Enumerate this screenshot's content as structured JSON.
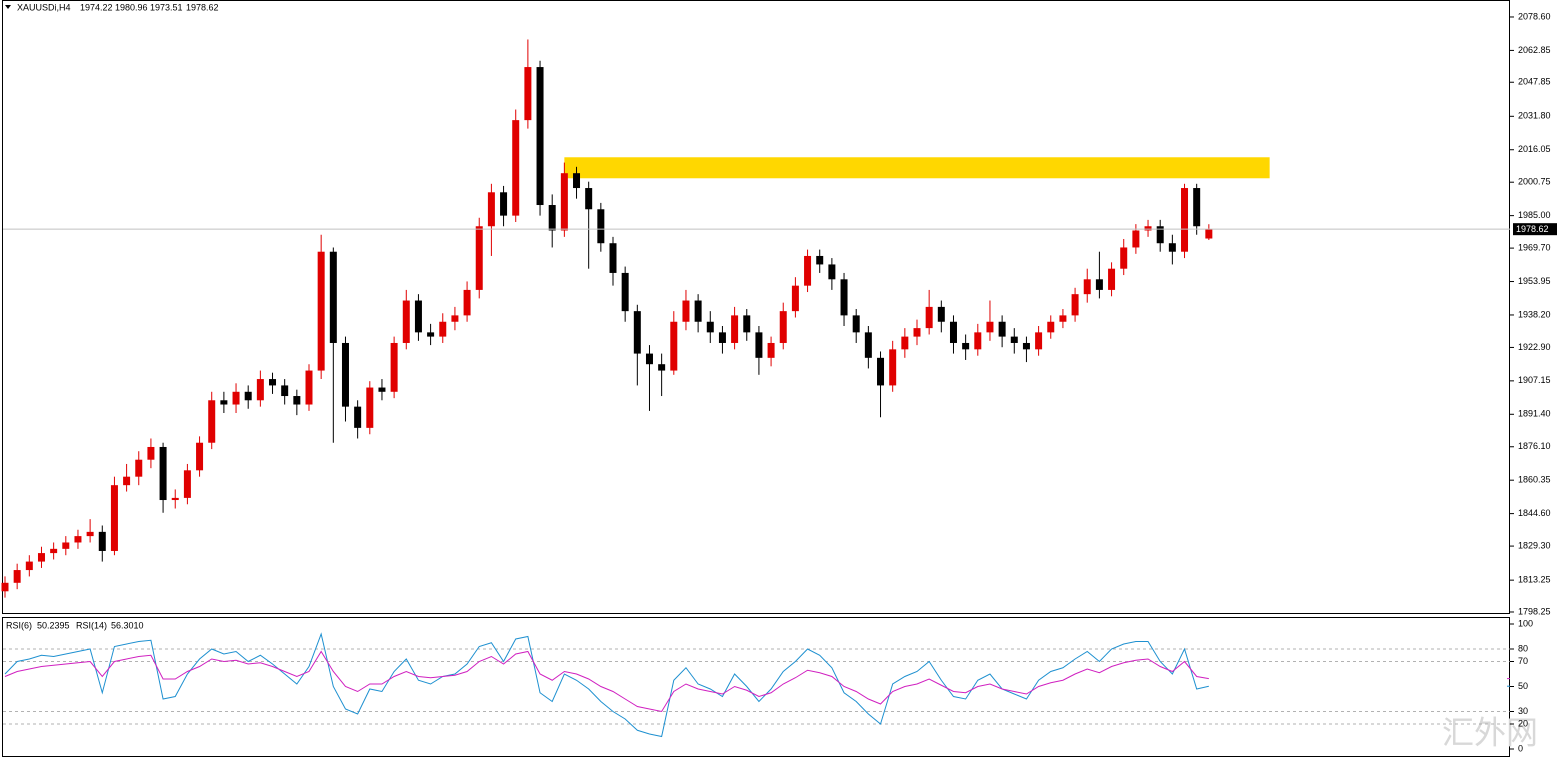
{
  "chart_data": {
    "type": "candlestick",
    "symbol": "XAUUSDi,H4",
    "up_color": "#e00000",
    "down_color": "#000000",
    "ylim": [
      1797.3,
      2086.6
    ],
    "yticks": [
      {
        "value": 2078.6,
        "label": "2078.60"
      },
      {
        "value": 2062.85,
        "label": "2062.85"
      },
      {
        "value": 2047.85,
        "label": "2047.85"
      },
      {
        "value": 2031.8,
        "label": "2031.80"
      },
      {
        "value": 2016.05,
        "label": "2016.05"
      },
      {
        "value": 2000.75,
        "label": "2000.75"
      },
      {
        "value": 1985,
        "label": "1985.00"
      },
      {
        "value": 1969.7,
        "label": "1969.70"
      },
      {
        "value": 1953.95,
        "label": "1953.95"
      },
      {
        "value": 1938.2,
        "label": "1938.20"
      },
      {
        "value": 1922.9,
        "label": "1922.90"
      },
      {
        "value": 1907.15,
        "label": "1907.15"
      },
      {
        "value": 1891.4,
        "label": "1891.40"
      },
      {
        "value": 1876.1,
        "label": "1876.10"
      },
      {
        "value": 1860.35,
        "label": "1860.35"
      },
      {
        "value": 1844.6,
        "label": "1844.60"
      },
      {
        "value": 1829.3,
        "label": "1829.30"
      },
      {
        "value": 1813.25,
        "label": "1813.25"
      },
      {
        "value": 1798.25,
        "label": "1798.25"
      }
    ],
    "open": [
      1808,
      1812,
      1818,
      1822,
      1826,
      1828,
      1831,
      1834,
      1836,
      1827,
      1858,
      1862,
      1870,
      1876,
      1851,
      1852,
      1865,
      1878,
      1898,
      1896,
      1902,
      1898,
      1908,
      1905,
      1900,
      1896,
      1912,
      1968,
      1925,
      1895,
      1885,
      1904,
      1902,
      1925,
      1945,
      1930,
      1928,
      1935,
      1938,
      1950,
      1980,
      1996,
      1985,
      2030,
      2055,
      1990,
      1978,
      2005,
      1998,
      1988,
      1972,
      1958,
      1940,
      1920,
      1915,
      1912,
      1935,
      1945,
      1935,
      1930,
      1925,
      1938,
      1930,
      1918,
      1925,
      1940,
      1952,
      1966,
      1962,
      1955,
      1938,
      1930,
      1918,
      1905,
      1922,
      1928,
      1932,
      1942,
      1935,
      1925,
      1922,
      1930,
      1935,
      1928,
      1925,
      1922,
      1930,
      1935,
      1938,
      1948,
      1955,
      1950,
      1960,
      1970,
      1978,
      1980,
      1972,
      1968,
      1998,
      1974.22
    ],
    "high": [
      1815,
      1821,
      1825,
      1829,
      1831,
      1834,
      1837,
      1842,
      1839,
      1862,
      1868,
      1874,
      1880,
      1878,
      1856,
      1868,
      1881,
      1902,
      1902,
      1906,
      1905,
      1912,
      1911,
      1908,
      1903,
      1915,
      1976,
      1970,
      1928,
      1898,
      1907,
      1908,
      1928,
      1950,
      1948,
      1934,
      1939,
      1942,
      1954,
      1984,
      2000,
      1999,
      2035,
      2068,
      2058,
      1995,
      2010,
      2008,
      2001,
      1991,
      1975,
      1961,
      1943,
      1924,
      1920,
      1940,
      1950,
      1948,
      1940,
      1933,
      1942,
      1941,
      1933,
      1928,
      1944,
      1956,
      1969,
      1969,
      1965,
      1958,
      1941,
      1933,
      1921,
      1926,
      1932,
      1936,
      1950,
      1945,
      1938,
      1929,
      1934,
      1945,
      1938,
      1932,
      1928,
      1933,
      1938,
      1941,
      1951,
      1960,
      1968,
      1963,
      1974,
      1981,
      1983,
      1983,
      1976,
      2000,
      2000,
      1980.96
    ],
    "low": [
      1805,
      1809,
      1815,
      1819,
      1823,
      1825,
      1828,
      1831,
      1822,
      1825,
      1855,
      1858,
      1866,
      1845,
      1847,
      1849,
      1862,
      1875,
      1892,
      1892,
      1894,
      1895,
      1901,
      1896,
      1891,
      1893,
      1908,
      1878,
      1888,
      1880,
      1882,
      1898,
      1899,
      1922,
      1926,
      1924,
      1925,
      1931,
      1935,
      1946,
      1966,
      1980,
      1982,
      2026,
      1985,
      1970,
      1975,
      1993,
      1960,
      1968,
      1952,
      1935,
      1905,
      1893,
      1900,
      1910,
      1931,
      1930,
      1925,
      1920,
      1922,
      1926,
      1910,
      1914,
      1922,
      1937,
      1949,
      1958,
      1950,
      1933,
      1925,
      1913,
      1890,
      1902,
      1918,
      1924,
      1929,
      1930,
      1920,
      1917,
      1919,
      1926,
      1923,
      1920,
      1916,
      1919,
      1927,
      1932,
      1935,
      1944,
      1946,
      1947,
      1957,
      1967,
      1975,
      1968,
      1962,
      1965,
      1976,
      1973.51
    ],
    "close": [
      1812,
      1818,
      1822,
      1826,
      1828,
      1831,
      1834,
      1836,
      1827,
      1858,
      1862,
      1870,
      1876,
      1851,
      1852,
      1865,
      1878,
      1898,
      1896,
      1902,
      1898,
      1908,
      1905,
      1900,
      1896,
      1912,
      1968,
      1925,
      1895,
      1885,
      1904,
      1902,
      1925,
      1945,
      1930,
      1928,
      1935,
      1938,
      1950,
      1980,
      1996,
      1985,
      2030,
      2055,
      1990,
      1978,
      2005,
      1998,
      1988,
      1972,
      1958,
      1940,
      1920,
      1915,
      1912,
      1935,
      1945,
      1935,
      1930,
      1925,
      1938,
      1930,
      1918,
      1925,
      1940,
      1952,
      1966,
      1962,
      1955,
      1938,
      1930,
      1918,
      1905,
      1922,
      1928,
      1932,
      1942,
      1935,
      1925,
      1922,
      1930,
      1935,
      1928,
      1925,
      1922,
      1930,
      1935,
      1938,
      1948,
      1955,
      1950,
      1960,
      1970,
      1978,
      1980,
      1972,
      1968,
      1998,
      1980,
      1978.62
    ],
    "zone": {
      "color": "#ffd700",
      "from_index": 46,
      "to_index": 104,
      "low": 2002.6,
      "high": 2012.5
    },
    "indicator": {
      "type": "line",
      "ylim": [
        0,
        100
      ],
      "yticks": [
        100,
        80,
        70,
        50,
        30,
        20,
        0
      ],
      "levels": [
        80,
        70,
        30,
        20
      ],
      "series": [
        {
          "name": "RSI(6)",
          "last": {
            "value": 50.2395,
            "label": "50.2395"
          },
          "color": "#1e90d0",
          "values": [
            60,
            70,
            72,
            75,
            74,
            76,
            78,
            80,
            45,
            82,
            84,
            86,
            87,
            40,
            42,
            60,
            72,
            80,
            76,
            78,
            70,
            75,
            68,
            60,
            52,
            66,
            92,
            50,
            32,
            28,
            48,
            46,
            62,
            72,
            55,
            52,
            58,
            60,
            68,
            82,
            85,
            70,
            88,
            90,
            45,
            38,
            60,
            55,
            48,
            38,
            30,
            24,
            15,
            12,
            10,
            55,
            65,
            52,
            48,
            42,
            60,
            50,
            38,
            48,
            62,
            70,
            80,
            75,
            65,
            45,
            38,
            28,
            20,
            52,
            58,
            62,
            70,
            55,
            42,
            40,
            55,
            60,
            48,
            44,
            40,
            55,
            62,
            65,
            72,
            78,
            70,
            80,
            84,
            86,
            86,
            70,
            60,
            80,
            48,
            50.2395
          ]
        },
        {
          "name": "RSI(14)",
          "last": {
            "value": 56.301,
            "label": "56.3010"
          },
          "color": "#d020c0",
          "values": [
            58,
            62,
            64,
            66,
            67,
            68,
            69,
            70,
            58,
            70,
            72,
            74,
            75,
            56,
            56,
            62,
            66,
            72,
            70,
            71,
            68,
            69,
            66,
            62,
            58,
            62,
            78,
            62,
            50,
            46,
            52,
            52,
            58,
            62,
            58,
            57,
            58,
            59,
            62,
            70,
            74,
            68,
            76,
            78,
            60,
            55,
            62,
            60,
            56,
            50,
            46,
            40,
            34,
            32,
            30,
            46,
            52,
            48,
            46,
            44,
            50,
            47,
            42,
            45,
            52,
            57,
            63,
            61,
            58,
            50,
            46,
            40,
            36,
            46,
            50,
            52,
            56,
            51,
            46,
            45,
            50,
            52,
            48,
            46,
            44,
            50,
            53,
            55,
            60,
            64,
            61,
            66,
            69,
            71,
            72,
            66,
            62,
            70,
            58,
            56.301
          ]
        }
      ]
    },
    "watermark": "汇外网"
  }
}
